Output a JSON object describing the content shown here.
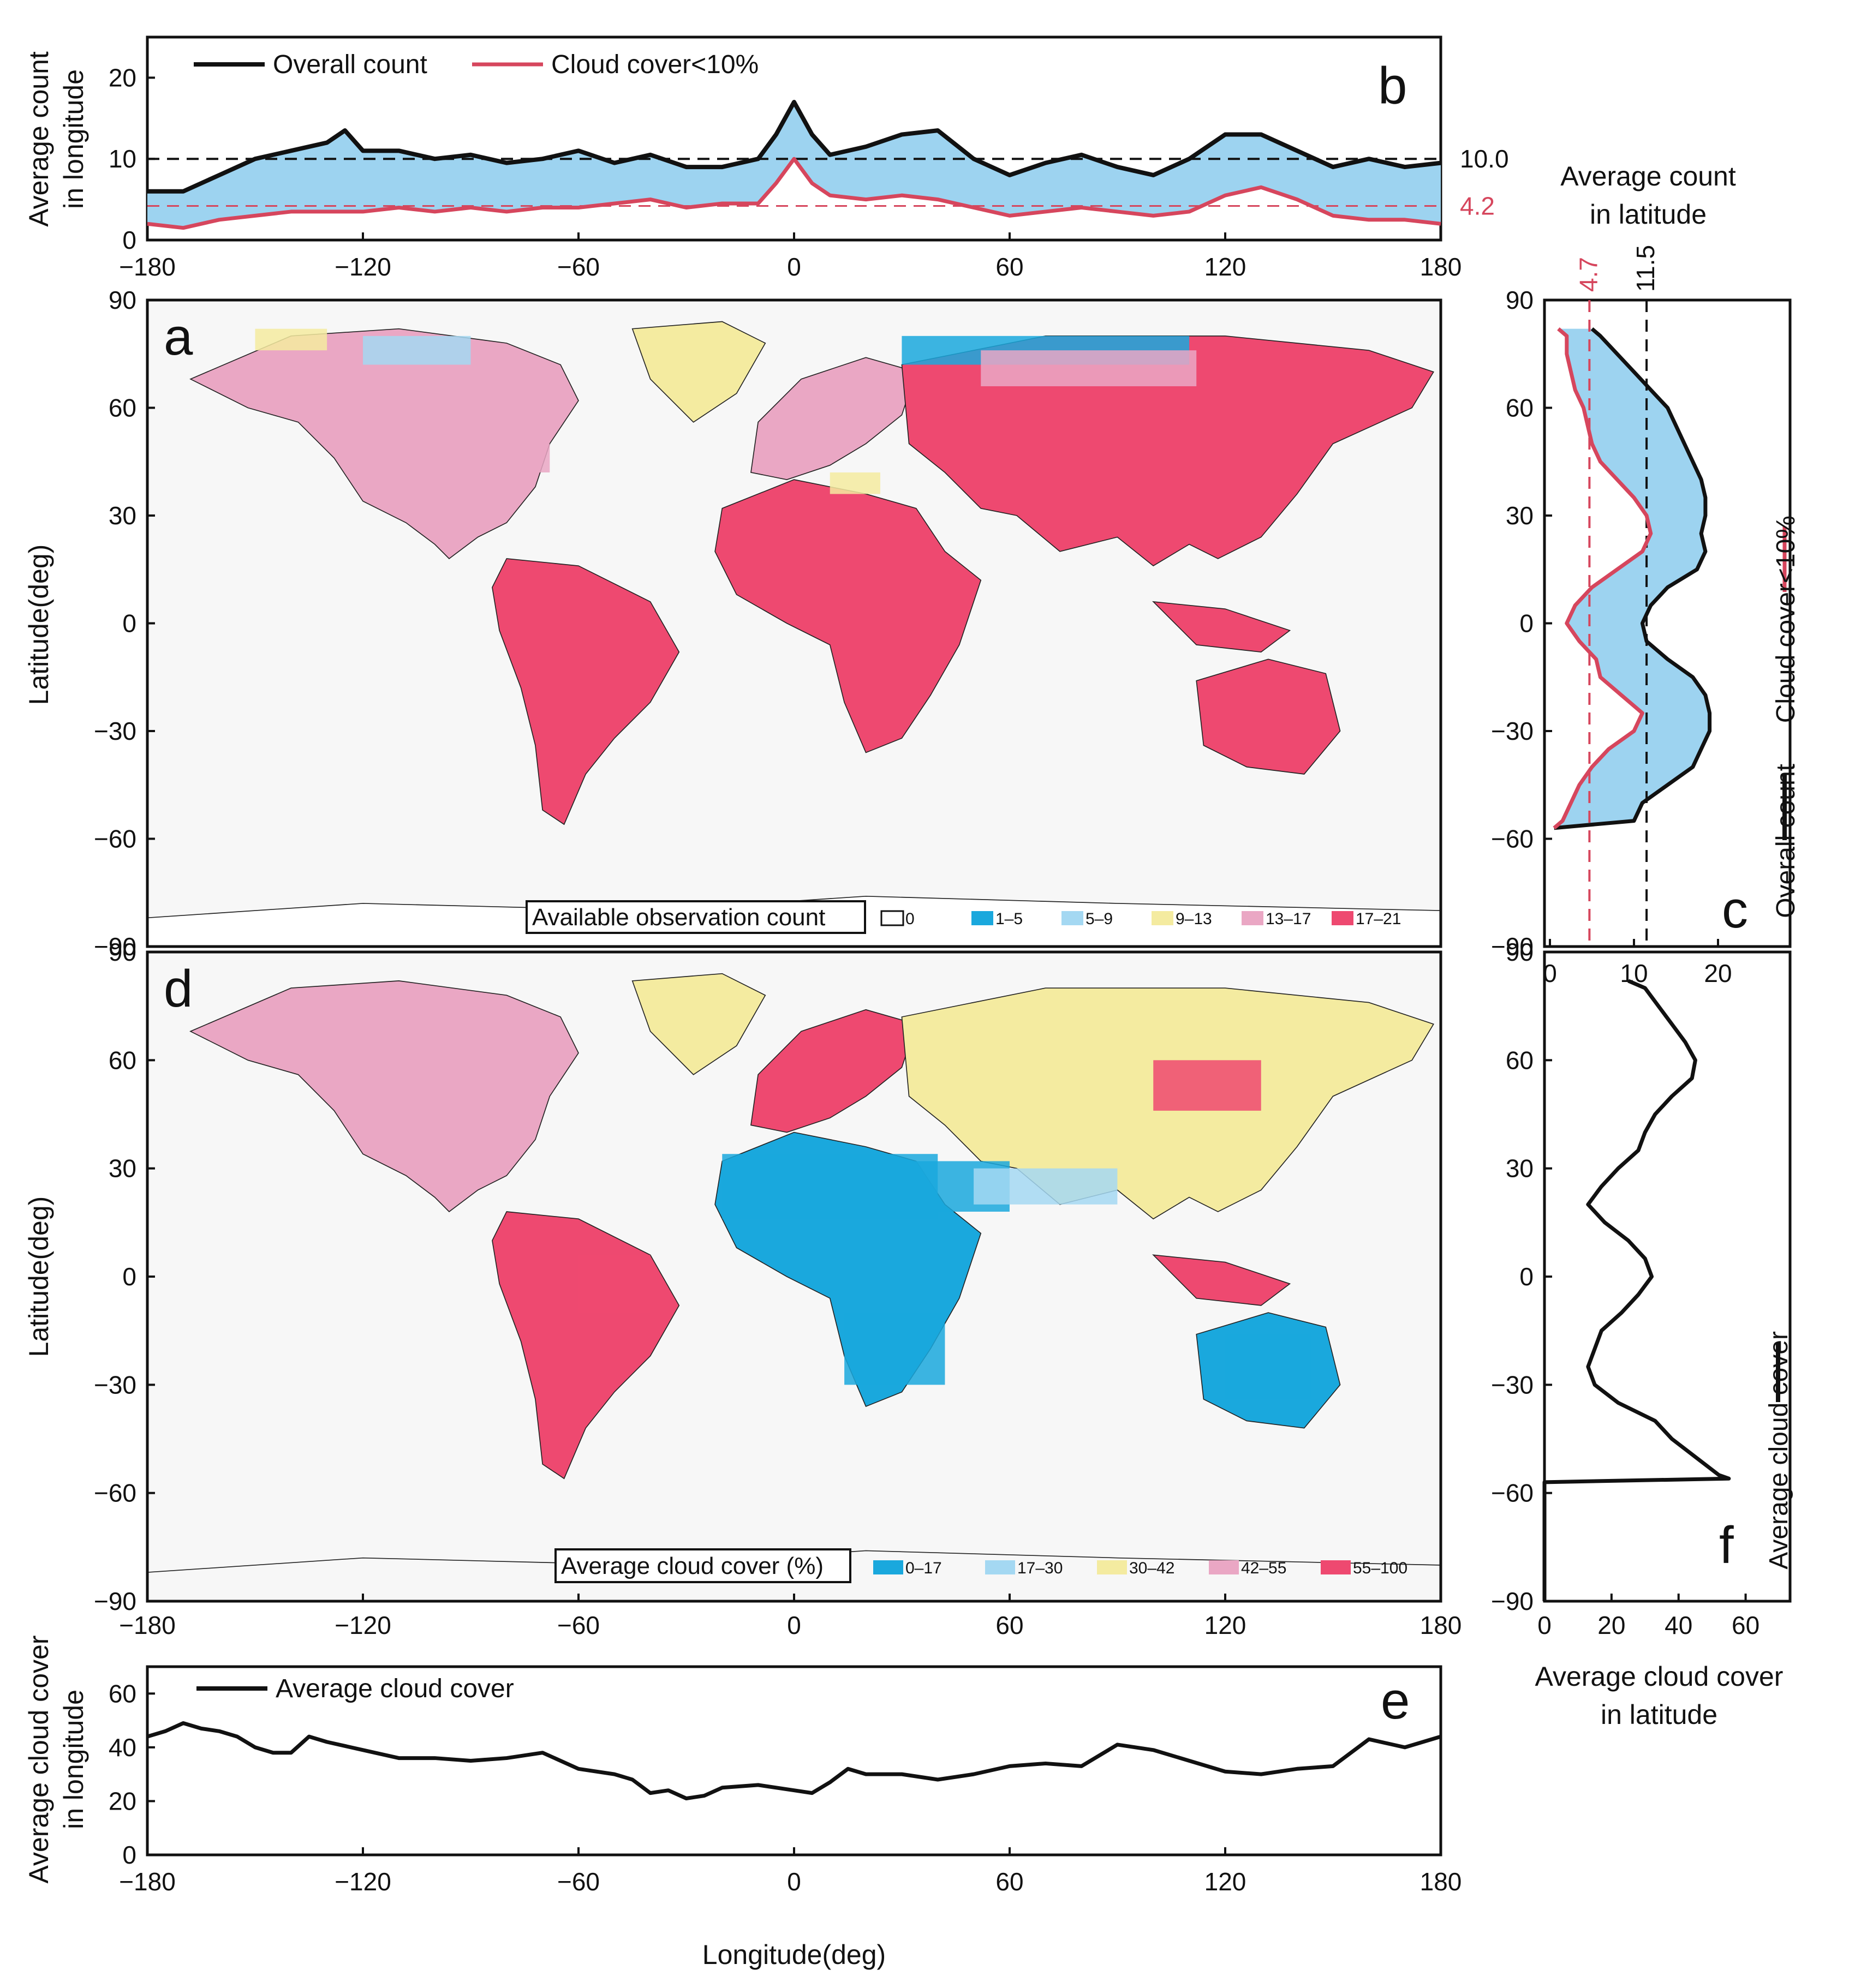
{
  "panel_letters": {
    "a": "a",
    "b": "b",
    "c": "c",
    "d": "d",
    "e": "e",
    "f": "f"
  },
  "colors": {
    "overall": "#111111",
    "cloud_low": "#d6465d",
    "fill_between": "#9dd3f0",
    "ocean_bg": "#f7f7f7",
    "count_classes": [
      "#ffffff",
      "#1aa8dd",
      "#a4d8f2",
      "#f4eba0",
      "#eaa7c4",
      "#ee4970"
    ],
    "cloud_classes": [
      "#1aa8dd",
      "#a4d8f2",
      "#f4eba0",
      "#eaa7c4",
      "#ee4970"
    ]
  },
  "chart_data": [
    {
      "id": "a",
      "type": "heatmap",
      "title": "",
      "xlabel": "",
      "ylabel": "Latitude(deg)",
      "xlim": [
        -180,
        180
      ],
      "ylim": [
        -90,
        90
      ],
      "yticks": [
        "90",
        "60",
        "30",
        "0",
        "−30",
        "−60",
        "−90"
      ],
      "legend": {
        "title": "Available observation count",
        "placement": "bottom-right",
        "classes": [
          "0",
          "1–5",
          "5–9",
          "9–13",
          "13–17",
          "17–21"
        ]
      }
    },
    {
      "id": "b",
      "type": "area",
      "xlabel": "",
      "ylabel_lines": [
        "Average count",
        "in longitude"
      ],
      "xlim": [
        -180,
        180
      ],
      "ylim": [
        0,
        25
      ],
      "xticks": [
        "−180",
        "−120",
        "−60",
        "0",
        "60",
        "120",
        "180"
      ],
      "yticks": [
        "0",
        "10",
        "20"
      ],
      "legend_placement": "top-left",
      "series": [
        {
          "name": "Overall count",
          "x": [
            -180,
            -170,
            -160,
            -150,
            -140,
            -130,
            -125,
            -120,
            -110,
            -100,
            -90,
            -80,
            -70,
            -60,
            -50,
            -40,
            -30,
            -20,
            -10,
            -5,
            0,
            5,
            10,
            20,
            30,
            40,
            50,
            60,
            70,
            80,
            90,
            100,
            110,
            120,
            130,
            140,
            150,
            160,
            170,
            180
          ],
          "values": [
            6,
            6,
            8,
            10,
            11,
            12,
            13.5,
            11,
            11,
            10,
            10.5,
            9.5,
            10,
            11,
            9.5,
            10.5,
            9,
            9,
            10,
            13,
            17,
            13,
            10.5,
            11.5,
            13,
            13.5,
            10,
            8,
            9.5,
            10.5,
            9,
            8,
            10,
            13,
            13,
            11,
            9,
            10,
            9,
            9.5
          ]
        },
        {
          "name": "Cloud cover<10%",
          "x": [
            -180,
            -170,
            -160,
            -150,
            -140,
            -130,
            -120,
            -110,
            -100,
            -90,
            -80,
            -70,
            -60,
            -50,
            -40,
            -30,
            -20,
            -10,
            -5,
            0,
            5,
            10,
            20,
            30,
            40,
            50,
            60,
            70,
            80,
            90,
            100,
            110,
            120,
            130,
            140,
            150,
            160,
            170,
            180
          ],
          "values": [
            2,
            1.5,
            2.5,
            3,
            3.5,
            3.5,
            3.5,
            4,
            3.5,
            4,
            3.5,
            4,
            4,
            4.5,
            5,
            4,
            4.5,
            4.5,
            7,
            10,
            7,
            5.5,
            5,
            5.5,
            5,
            4,
            3,
            3.5,
            4,
            3.5,
            3,
            3.5,
            5.5,
            6.5,
            5,
            3,
            2.5,
            2.5,
            2
          ]
        }
      ],
      "reference_lines": [
        {
          "value": 10.0,
          "label": "10.0"
        },
        {
          "value": 4.2,
          "label": "4.2"
        }
      ]
    },
    {
      "id": "c",
      "type": "area",
      "xlabel_lines": [
        "Average count",
        "in latitude"
      ],
      "xlim": [
        0,
        25
      ],
      "ylim": [
        -90,
        90
      ],
      "xticks": [
        "0",
        "10",
        "20"
      ],
      "yticks": [
        "90",
        "60",
        "30",
        "0",
        "−30",
        "−60",
        "−90"
      ],
      "legend_placement": "right-vertical",
      "series": [
        {
          "name": "Overall count",
          "y": [
            82,
            80,
            75,
            70,
            65,
            60,
            55,
            50,
            45,
            40,
            35,
            30,
            25,
            20,
            15,
            10,
            5,
            0,
            -5,
            -10,
            -15,
            -20,
            -25,
            -30,
            -35,
            -40,
            -45,
            -50,
            -55,
            -57
          ],
          "values": [
            5,
            6,
            8,
            10,
            12,
            14,
            15,
            16,
            17,
            18,
            18.5,
            18.5,
            18,
            18.5,
            17.5,
            14,
            12,
            11,
            11.5,
            14,
            17,
            18.5,
            19,
            19,
            18,
            17,
            14,
            11,
            10,
            0.5
          ]
        },
        {
          "name": "Cloud cover<10%",
          "y": [
            82,
            80,
            75,
            70,
            65,
            60,
            55,
            50,
            45,
            40,
            35,
            30,
            25,
            20,
            15,
            10,
            5,
            0,
            -5,
            -10,
            -15,
            -20,
            -25,
            -30,
            -35,
            -40,
            -45,
            -50,
            -55,
            -57
          ],
          "values": [
            1,
            2,
            2,
            2.5,
            3,
            4,
            4.5,
            5,
            6,
            8,
            10,
            11.5,
            12,
            11,
            8,
            5,
            3,
            2,
            3.5,
            5.5,
            6,
            8.5,
            11,
            10,
            7,
            5,
            3.5,
            2.5,
            1.5,
            0.5
          ]
        }
      ],
      "reference_lines": [
        {
          "value": 4.7,
          "label": "4.7"
        },
        {
          "value": 11.5,
          "label": "11.5"
        }
      ]
    },
    {
      "id": "d",
      "type": "heatmap",
      "xlabel": "",
      "ylabel": "Latitude(deg)",
      "xlim": [
        -180,
        180
      ],
      "ylim": [
        -90,
        90
      ],
      "xticks": [
        "−180",
        "−120",
        "−60",
        "0",
        "60",
        "120",
        "180"
      ],
      "yticks": [
        "90",
        "60",
        "30",
        "0",
        "−30",
        "−60",
        "−90"
      ],
      "legend": {
        "title": "Average cloud cover (%)",
        "placement": "bottom-right",
        "classes": [
          "0–17",
          "17–30",
          "30–42",
          "42–55",
          "55–100"
        ]
      }
    },
    {
      "id": "e",
      "type": "line",
      "xlabel": "Longitude(deg)",
      "ylabel_lines": [
        "Average cloud cover",
        "in longitude"
      ],
      "xlim": [
        -180,
        180
      ],
      "ylim": [
        0,
        70
      ],
      "xticks": [
        "−180",
        "−120",
        "−60",
        "0",
        "60",
        "120",
        "180"
      ],
      "yticks": [
        "0",
        "20",
        "40",
        "60"
      ],
      "legend_placement": "top-left",
      "series": [
        {
          "name": "Average cloud cover",
          "x": [
            -180,
            -175,
            -170,
            -165,
            -160,
            -155,
            -150,
            -145,
            -140,
            -135,
            -130,
            -120,
            -110,
            -100,
            -90,
            -80,
            -70,
            -60,
            -50,
            -45,
            -40,
            -35,
            -30,
            -25,
            -20,
            -10,
            0,
            5,
            10,
            15,
            20,
            30,
            40,
            50,
            60,
            70,
            80,
            90,
            100,
            110,
            120,
            130,
            140,
            150,
            155,
            160,
            170,
            175,
            180
          ],
          "values": [
            44,
            46,
            49,
            47,
            46,
            44,
            40,
            38,
            38,
            44,
            42,
            39,
            36,
            36,
            35,
            36,
            38,
            32,
            30,
            28,
            23,
            24,
            21,
            22,
            25,
            26,
            24,
            23,
            27,
            32,
            30,
            30,
            28,
            30,
            33,
            34,
            33,
            41,
            39,
            35,
            31,
            30,
            32,
            33,
            38,
            43,
            40,
            42,
            44
          ]
        }
      ]
    },
    {
      "id": "f",
      "type": "line",
      "xlabel_lines": [
        "Average cloud cover",
        "in latitude"
      ],
      "xlim": [
        0,
        70
      ],
      "ylim": [
        -90,
        90
      ],
      "xticks": [
        "0",
        "20",
        "40",
        "60"
      ],
      "yticks": [
        "90",
        "60",
        "30",
        "0",
        "−30",
        "−60",
        "−90"
      ],
      "legend_placement": "right-vertical",
      "series": [
        {
          "name": "Average cloud cover",
          "y": [
            82,
            80,
            75,
            70,
            65,
            60,
            55,
            50,
            45,
            40,
            35,
            30,
            25,
            20,
            15,
            10,
            5,
            0,
            -5,
            -10,
            -15,
            -20,
            -25,
            -30,
            -35,
            -40,
            -45,
            -50,
            -55,
            -56,
            -57
          ],
          "values": [
            25,
            30,
            34,
            38,
            42,
            45,
            44,
            38,
            33,
            30,
            28,
            22,
            17,
            13,
            18,
            25,
            30,
            32,
            28,
            23,
            17,
            15,
            13,
            15,
            22,
            33,
            38,
            45,
            52,
            55,
            0
          ]
        }
      ]
    }
  ]
}
